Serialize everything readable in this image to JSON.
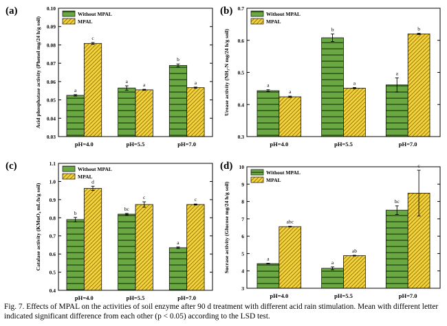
{
  "colors": {
    "without_mpal": "#6aa843",
    "without_mpal_line": "#1e3a0a",
    "mpal": "#f2d23e",
    "mpal_line": "#9a7a06"
  },
  "caption": "Fig. 7. Effects of MPAL on the activities of soil enzyme after 90 d treatment with different acid rain stimulation. Mean with different letter indicated significant difference from each other (p < 0.05) according to the LSD test.",
  "chart_data": [
    {
      "type": "bar",
      "panel_label": "(a)",
      "ylabel": "Acid phosphatase activity (Phenol mg/24 h/g soil)",
      "ylim": [
        0.03,
        0.1
      ],
      "yticks": [
        "0.03",
        "0.04",
        "0.05",
        "0.06",
        "0.07",
        "0.08",
        "0.09",
        "0.10"
      ],
      "categories": [
        "pH=4.0",
        "pH=5.5",
        "pH=7.0"
      ],
      "legend_position": "top-left",
      "series": [
        {
          "name": "Without MPAL",
          "values": [
            0.0525,
            0.0565,
            0.0688
          ],
          "errors": [
            0.0004,
            0.0012,
            0.0008
          ],
          "letters": [
            "a",
            "a",
            "b"
          ]
        },
        {
          "name": "MPAL",
          "values": [
            0.0808,
            0.0555,
            0.0567
          ],
          "errors": [
            0.0005,
            0.0003,
            0.0003
          ],
          "letters": [
            "c",
            "a",
            "a"
          ]
        }
      ]
    },
    {
      "type": "bar",
      "panel_label": "(b)",
      "ylabel": "Urease activity (NH₃-N mg/24 h/g soil)",
      "ylim": [
        0.3,
        0.7
      ],
      "yticks": [
        "0.3",
        "0.4",
        "0.5",
        "0.6",
        "0.7"
      ],
      "categories": [
        "pH=4.0",
        "pH=5.5",
        "pH=7.0"
      ],
      "legend_position": "top-left",
      "series": [
        {
          "name": "Without MPAL",
          "values": [
            0.443,
            0.608,
            0.461
          ],
          "errors": [
            0.003,
            0.012,
            0.022
          ],
          "letters": [
            "a",
            "b",
            "a"
          ]
        },
        {
          "name": "MPAL",
          "values": [
            0.424,
            0.451,
            0.62
          ],
          "errors": [
            0.002,
            0.002,
            0.002
          ],
          "letters": [
            "a",
            "a",
            "b"
          ]
        }
      ]
    },
    {
      "type": "bar",
      "panel_label": "(c)",
      "ylabel": "Catalase activity (KMnO₄ mL/h/g soil)",
      "ylim": [
        0.4,
        1.1
      ],
      "yticks": [
        "0.4",
        "0.5",
        "0.6",
        "0.7",
        "0.8",
        "0.9",
        "1.0",
        "1.1"
      ],
      "categories": [
        "pH=4.0",
        "pH=5.5",
        "pH=7.0"
      ],
      "legend_position": "top-left",
      "series": [
        {
          "name": "Without MPAL",
          "values": [
            0.79,
            0.82,
            0.635
          ],
          "errors": [
            0.012,
            0.004,
            0.004
          ],
          "letters": [
            "b",
            "bc",
            "a"
          ]
        },
        {
          "name": "MPAL",
          "values": [
            0.962,
            0.873,
            0.873
          ],
          "errors": [
            0.012,
            0.015,
            0.003
          ],
          "letters": [
            "d",
            "c",
            "c"
          ]
        }
      ]
    },
    {
      "type": "bar",
      "panel_label": "(d)",
      "ylabel": "Sucrase activity (Glucose mg/24 h/g soil)",
      "ylim": [
        3,
        10
      ],
      "yticks": [
        "3",
        "4",
        "5",
        "6",
        "7",
        "8",
        "9",
        "10"
      ],
      "categories": [
        "pH=4.0",
        "pH=5.5",
        "pH=7.0"
      ],
      "legend_position": "top-left",
      "series": [
        {
          "name": "Without MPAL",
          "values": [
            4.42,
            4.15,
            7.5
          ],
          "errors": [
            0.02,
            0.08,
            0.25
          ],
          "letters": [
            "a",
            "a",
            "bc"
          ]
        },
        {
          "name": "MPAL",
          "values": [
            6.55,
            4.88,
            8.48
          ],
          "errors": [
            0.02,
            0.02,
            1.32
          ],
          "letters": [
            "abc",
            "ab",
            "c"
          ]
        }
      ]
    }
  ]
}
